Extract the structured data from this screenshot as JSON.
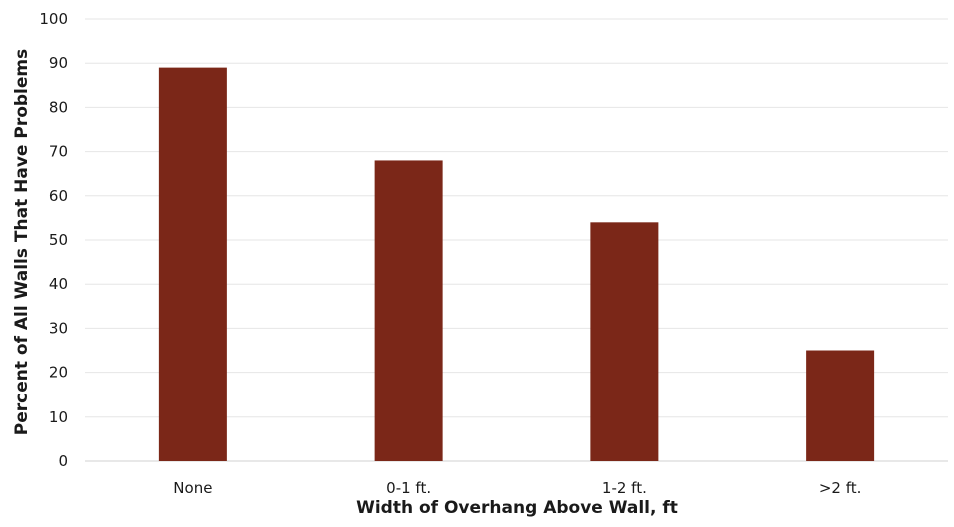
{
  "chart_data": {
    "type": "bar",
    "categories": [
      "None",
      "0-1 ft.",
      "1-2 ft.",
      ">2 ft."
    ],
    "values": [
      89,
      68,
      54,
      25
    ],
    "xlabel": "Width of Overhang Above Wall, ft",
    "ylabel": "Percent of All Walls That Have Problems",
    "ylim": [
      0,
      100
    ],
    "yticks": [
      0,
      10,
      20,
      30,
      40,
      50,
      60,
      70,
      80,
      90,
      100
    ],
    "grid": true,
    "legend": "none",
    "bar_color": "#7b2718",
    "grid_color": "#e6e6e6"
  }
}
